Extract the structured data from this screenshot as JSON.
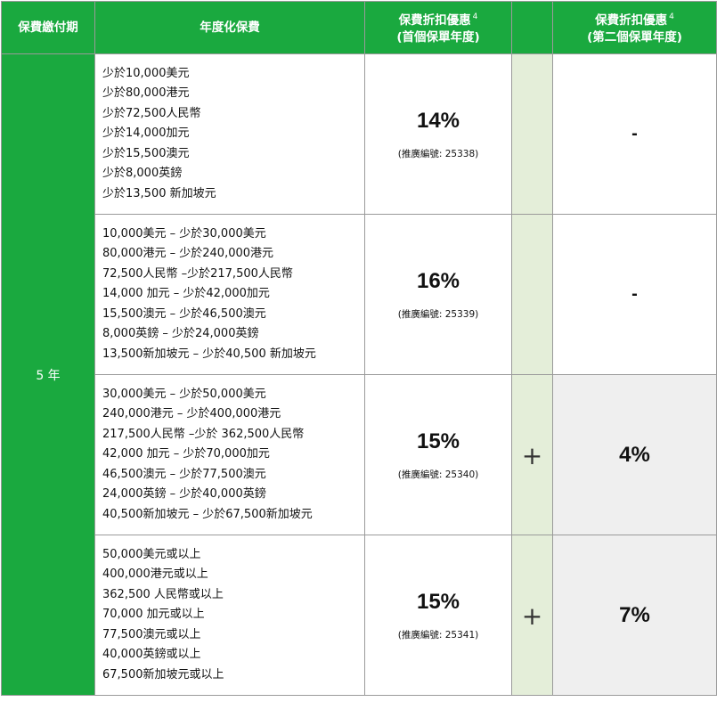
{
  "headers": {
    "term": "保費繳付期",
    "premium": "年度化保費",
    "first_line1": "保費折扣優惠",
    "first_line2": "(首個保單年度)",
    "first_sup": "4",
    "second_line1": "保費折扣優惠",
    "second_line2": "(第二個保單年度)",
    "second_sup": "4"
  },
  "term_value": "5 年",
  "promo_label": "(推廣編號:",
  "rows": [
    {
      "premium_lines": [
        "少於10,000美元",
        "少於80,000港元",
        "少於72,500人民幣",
        "少於14,000加元",
        "少於15,500澳元",
        "少於8,000英鎊",
        "少於13,500 新加坡元"
      ],
      "first_pct": "14%",
      "promo_code": "(推廣編號: 25338)",
      "plus": "",
      "second": "-"
    },
    {
      "premium_lines": [
        "10,000美元 – 少於30,000美元",
        "80,000港元 – 少於240,000港元",
        "72,500人民幣 –少於217,500人民幣",
        "14,000 加元 – 少於42,000加元",
        "15,500澳元 – 少於46,500澳元",
        "8,000英鎊 – 少於24,000英鎊",
        "13,500新加坡元 – 少於40,500 新加坡元"
      ],
      "first_pct": "16%",
      "promo_code": "(推廣編號: 25339)",
      "plus": "",
      "second": "-"
    },
    {
      "premium_lines": [
        "30,000美元 – 少於50,000美元",
        "240,000港元 – 少於400,000港元",
        "217,500人民幣 –少於 362,500人民幣",
        "42,000 加元 – 少於70,000加元",
        "46,500澳元 – 少於77,500澳元",
        "24,000英鎊 – 少於40,000英鎊",
        "40,500新加坡元 – 少於67,500新加坡元"
      ],
      "first_pct": "15%",
      "promo_code": "(推廣編號: 25340)",
      "plus": "+",
      "second": "4%"
    },
    {
      "premium_lines": [
        "50,000美元或以上",
        "400,000港元或以上",
        "362,500 人民幣或以上",
        "70,000 加元或以上",
        "77,500澳元或以上",
        "40,000英鎊或以上",
        "67,500新加坡元或以上"
      ],
      "first_pct": "15%",
      "promo_code": "(推廣編號: 25341)",
      "plus": "+",
      "second": "7%"
    }
  ],
  "colors": {
    "header_green": "#1aa93f",
    "plus_column": "#e4eed9",
    "shaded_cell": "#efefef"
  }
}
